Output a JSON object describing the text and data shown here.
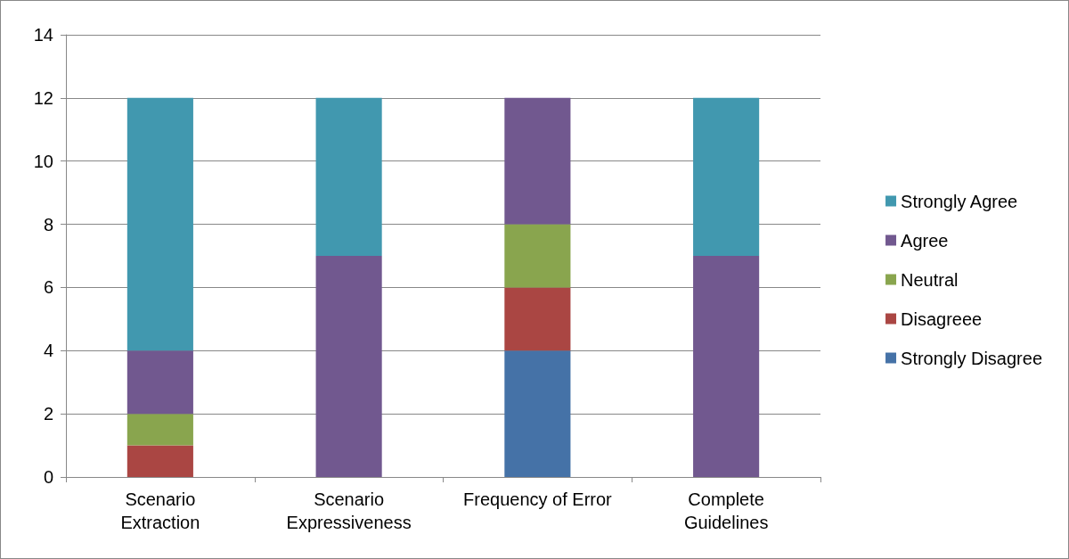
{
  "chart_data": {
    "type": "bar",
    "stacked": true,
    "categories": [
      "Scenario Extraction",
      "Scenario Expressiveness",
      "Frequency of Error",
      "Complete Guidelines"
    ],
    "series": [
      {
        "name": "Strongly Disagree",
        "color": "#4572a7",
        "values": [
          0,
          0,
          4,
          0
        ]
      },
      {
        "name": "Disagreee",
        "color": "#aa4643",
        "values": [
          1,
          0,
          2,
          0
        ]
      },
      {
        "name": "Neutral",
        "color": "#89a54e",
        "values": [
          1,
          0,
          2,
          0
        ]
      },
      {
        "name": "Agree",
        "color": "#71588f",
        "values": [
          2,
          7,
          4,
          7
        ]
      },
      {
        "name": "Strongly Agree",
        "color": "#4198af",
        "values": [
          8,
          5,
          0,
          5
        ]
      }
    ],
    "ylim": [
      0,
      14
    ],
    "yticks": [
      0,
      2,
      4,
      6,
      8,
      10,
      12,
      14
    ],
    "grid": "y",
    "legend": "right"
  }
}
